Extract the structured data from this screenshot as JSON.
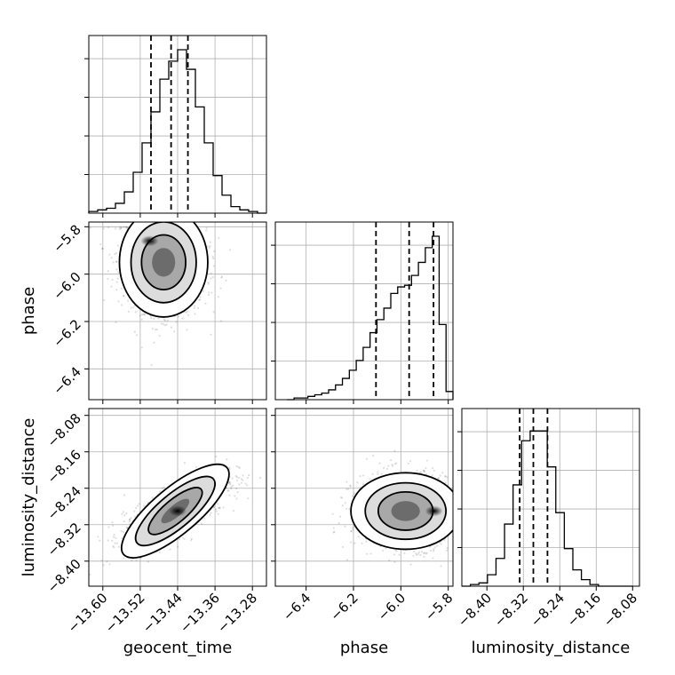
{
  "chart_data": {
    "type": "corner",
    "parameters": [
      "geocent_time",
      "phase",
      "luminosity_distance"
    ],
    "axis_labels": {
      "geocent_time": "geocent_time",
      "phase": "phase",
      "luminosity_distance": "luminosity_distance"
    },
    "ranges": {
      "geocent_time": [
        -13.63,
        -13.25
      ],
      "phase": [
        -6.53,
        -5.78
      ],
      "luminosity_distance": [
        -8.455,
        -8.065
      ]
    },
    "ticks": {
      "geocent_time": [
        "−13.60",
        "−13.52",
        "−13.44",
        "−13.36",
        "−13.28"
      ],
      "phase": [
        "−6.4",
        "−6.2",
        "−6.0",
        "−5.8"
      ],
      "luminosity_distance": [
        "−8.40",
        "−8.32",
        "−8.24",
        "−8.16",
        "−8.08"
      ]
    },
    "quantiles": {
      "geocent_time": [
        -13.497,
        -13.454,
        -13.418
      ],
      "phase": [
        -6.105,
        -5.965,
        -5.862
      ],
      "luminosity_distance": [
        -8.328,
        -8.298,
        -8.267
      ]
    },
    "histograms": {
      "geocent_time": [
        0.01,
        0.02,
        0.03,
        0.06,
        0.13,
        0.25,
        0.43,
        0.62,
        0.82,
        0.93,
        1.0,
        0.88,
        0.65,
        0.43,
        0.23,
        0.11,
        0.04,
        0.02,
        0.01,
        0.0
      ],
      "phase": [
        0.0,
        0.01,
        0.01,
        0.02,
        0.03,
        0.04,
        0.06,
        0.09,
        0.13,
        0.18,
        0.24,
        0.32,
        0.41,
        0.49,
        0.56,
        0.65,
        0.69,
        0.7,
        0.76,
        0.84,
        0.93,
        1.0,
        0.46,
        0.05
      ],
      "luminosity_distance": [
        0.0,
        0.01,
        0.02,
        0.07,
        0.17,
        0.38,
        0.62,
        0.89,
        0.95,
        0.95,
        0.73,
        0.45,
        0.23,
        0.1,
        0.04,
        0.01,
        0.0,
        0.0,
        0.0,
        0.0
      ]
    },
    "grid": true,
    "color": "#000000"
  }
}
